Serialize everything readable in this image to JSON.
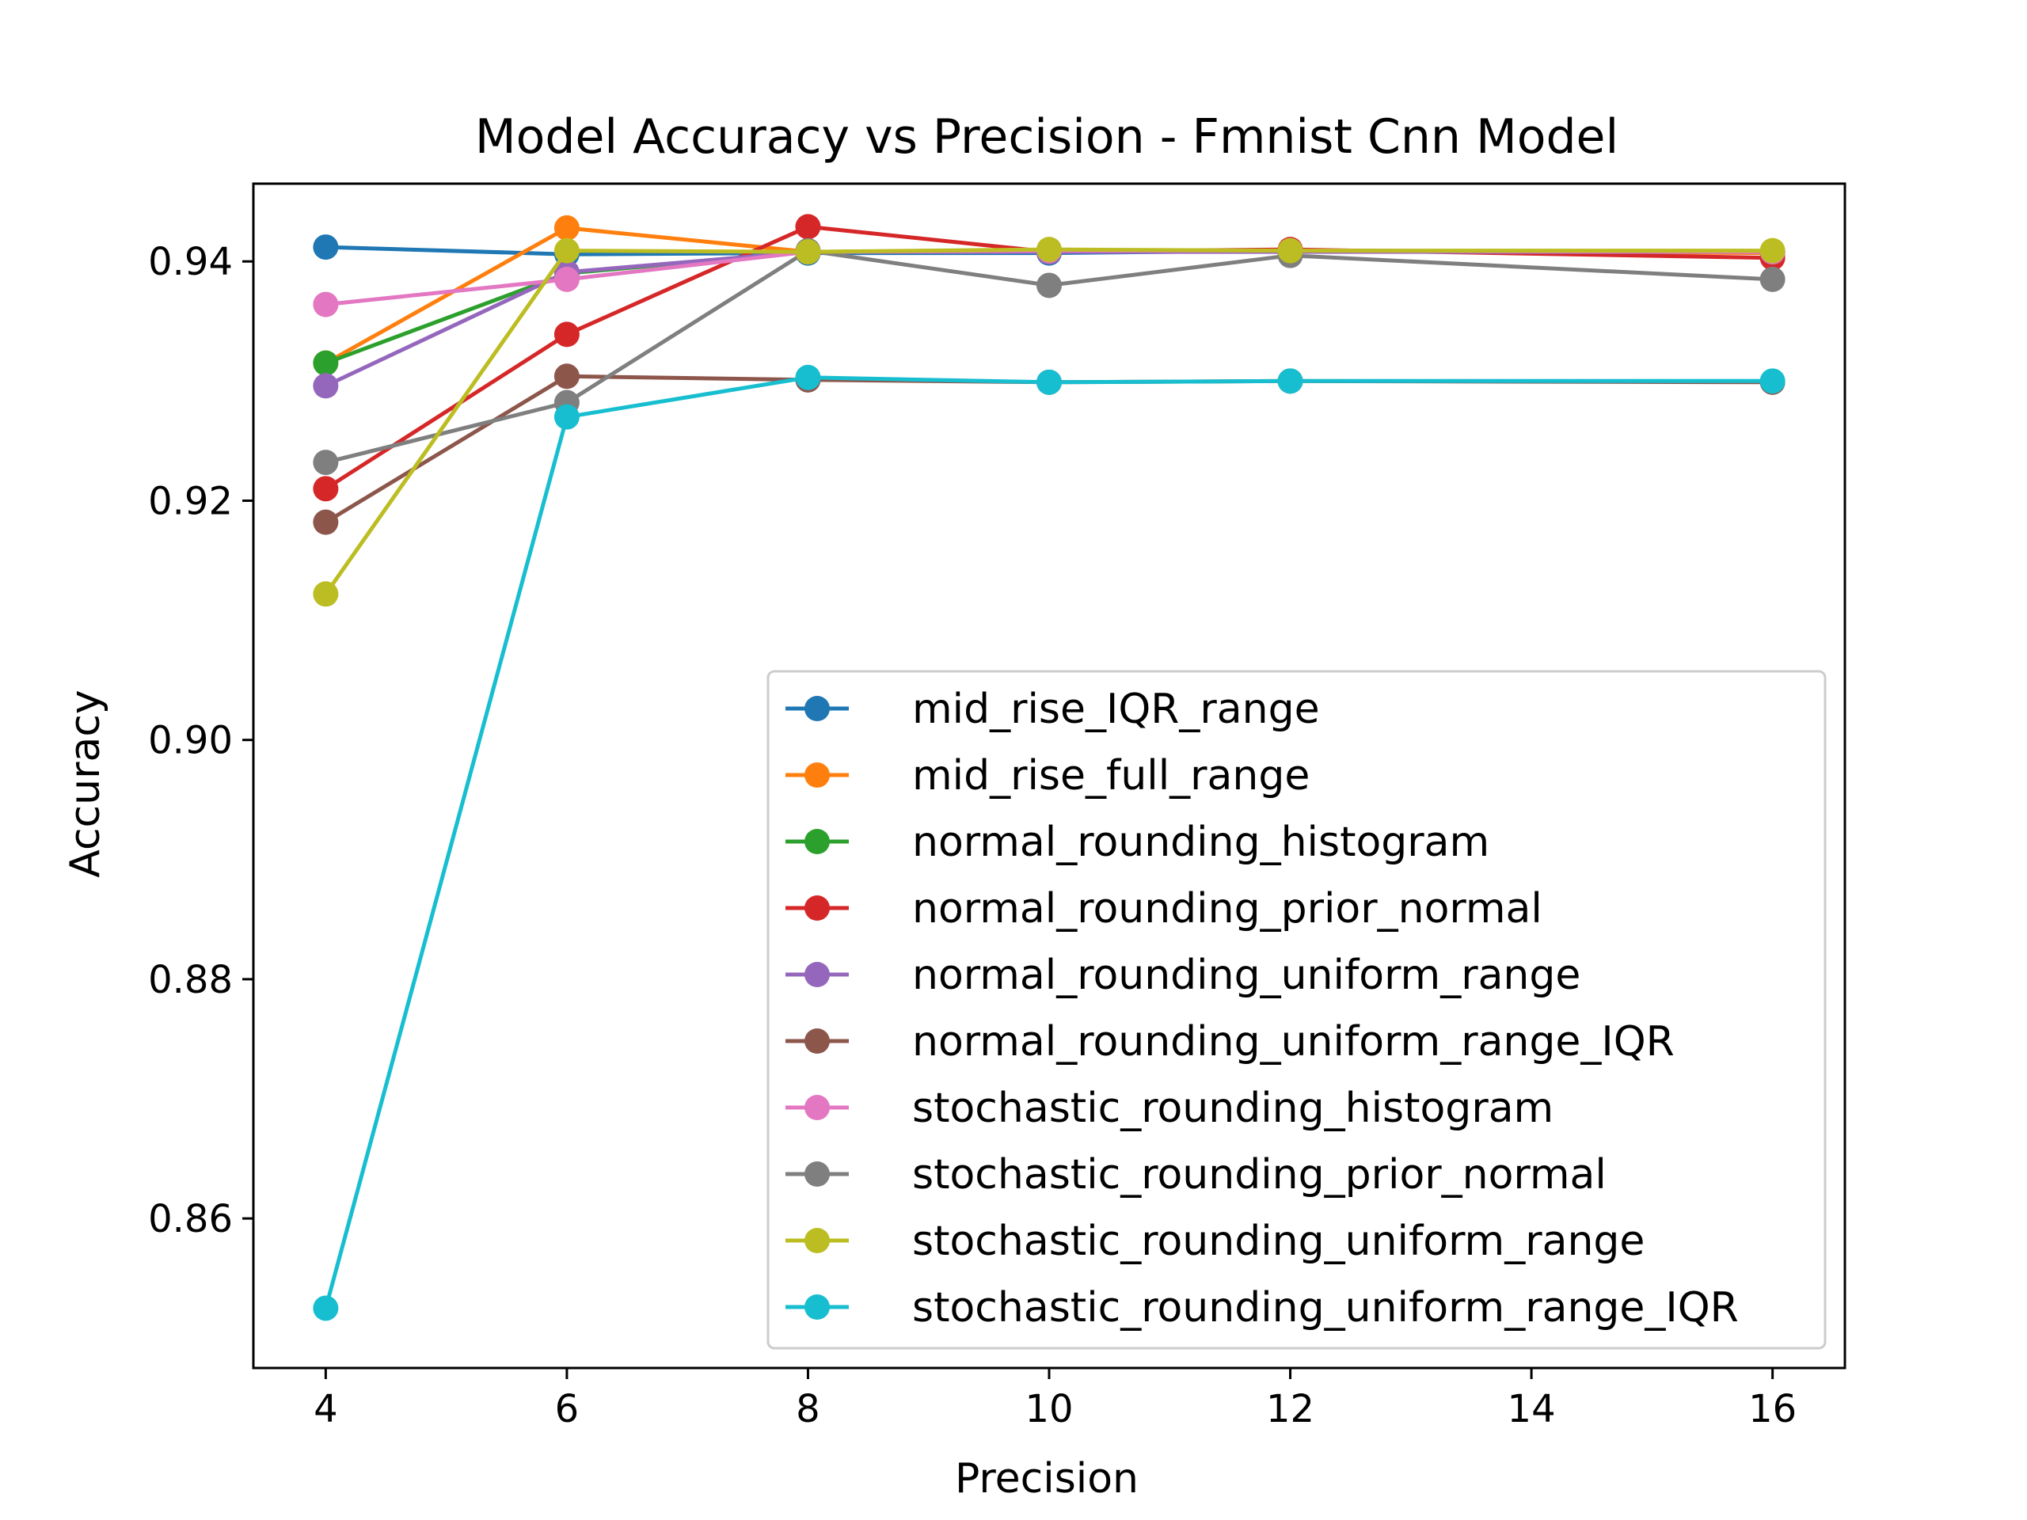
{
  "chart_data": {
    "type": "line",
    "title": "Model Accuracy vs Precision - Fmnist Cnn Model",
    "xlabel": "Precision",
    "ylabel": "Accuracy",
    "x": [
      4,
      6,
      8,
      10,
      12,
      16
    ],
    "xlim": [
      3.4,
      16.6
    ],
    "ylim": [
      0.8475,
      0.9465
    ],
    "xticks": [
      4,
      6,
      8,
      10,
      12,
      14,
      16
    ],
    "yticks": [
      0.86,
      0.88,
      0.9,
      0.92,
      0.94
    ],
    "ytick_labels": [
      "0.86",
      "0.88",
      "0.90",
      "0.92",
      "0.94"
    ],
    "grid": false,
    "legend_position": "lower-right",
    "series": [
      {
        "name": "mid_rise_IQR_range",
        "color": "#1f77b4",
        "values": [
          0.9412,
          0.9406,
          0.9407,
          0.9407,
          0.9409,
          0.9408
        ]
      },
      {
        "name": "mid_rise_full_range",
        "color": "#ff7f0e",
        "values": [
          0.9315,
          0.9428,
          0.9408,
          0.9409,
          0.9409,
          0.9407
        ]
      },
      {
        "name": "normal_rounding_histogram",
        "color": "#2ca02c",
        "values": [
          0.9315,
          0.939,
          0.9408,
          0.9409,
          0.9409,
          0.9408
        ]
      },
      {
        "name": "normal_rounding_prior_normal",
        "color": "#d62728",
        "values": [
          0.921,
          0.9339,
          0.9429,
          0.9408,
          0.941,
          0.9403
        ]
      },
      {
        "name": "normal_rounding_uniform_range",
        "color": "#9467bd",
        "values": [
          0.9296,
          0.9391,
          0.9408,
          0.9408,
          0.9408,
          0.9408
        ]
      },
      {
        "name": "normal_rounding_uniform_range_IQR",
        "color": "#8c564b",
        "values": [
          0.9182,
          0.9304,
          0.9301,
          0.9299,
          0.93,
          0.9299
        ]
      },
      {
        "name": "stochastic_rounding_histogram",
        "color": "#e377c2",
        "values": [
          0.9364,
          0.9385,
          0.9408,
          0.9409,
          0.9409,
          0.9408
        ]
      },
      {
        "name": "stochastic_rounding_prior_normal",
        "color": "#7f7f7f",
        "values": [
          0.9232,
          0.9282,
          0.9409,
          0.938,
          0.9405,
          0.9385
        ]
      },
      {
        "name": "stochastic_rounding_uniform_range",
        "color": "#bcbd22",
        "values": [
          0.9122,
          0.9409,
          0.9408,
          0.941,
          0.9409,
          0.9409
        ]
      },
      {
        "name": "stochastic_rounding_uniform_range_IQR",
        "color": "#17becf",
        "values": [
          0.8525,
          0.927,
          0.9303,
          0.9299,
          0.93,
          0.93
        ]
      }
    ]
  }
}
